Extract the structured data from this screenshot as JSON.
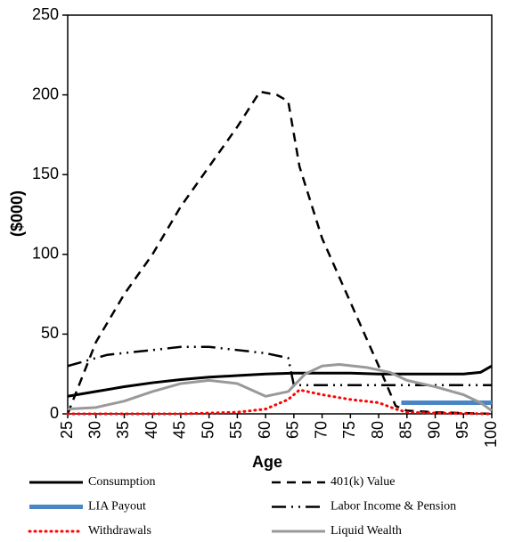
{
  "chart_data": {
    "type": "line",
    "xlabel": "Age",
    "ylabel": "($000)",
    "xlim": [
      25,
      100
    ],
    "xticks": [
      25,
      30,
      35,
      40,
      45,
      50,
      55,
      60,
      65,
      70,
      75,
      80,
      85,
      90,
      95,
      100
    ],
    "ylim": [
      0,
      250
    ],
    "yticks": [
      0,
      50,
      100,
      150,
      200,
      250
    ],
    "grid": false,
    "legend": "bottom",
    "series": [
      {
        "name": "Consumption",
        "color": "#000000",
        "dash": "solid",
        "x": [
          25,
          30,
          35,
          40,
          45,
          50,
          55,
          60,
          65,
          70,
          75,
          80,
          85,
          90,
          95,
          98,
          100
        ],
        "values": [
          11,
          14,
          17,
          19.5,
          21.5,
          23,
          24,
          25,
          25.5,
          25.5,
          25.5,
          25,
          25,
          25,
          25,
          26,
          30
        ]
      },
      {
        "name": "401(k) Value",
        "color": "#000000",
        "dash": "dash",
        "x": [
          25,
          30,
          35,
          40,
          45,
          50,
          55,
          59,
          62,
          64,
          66,
          70,
          75,
          80,
          83,
          85,
          90,
          100
        ],
        "values": [
          0,
          45,
          75,
          100,
          130,
          155,
          180,
          202,
          200,
          196,
          155,
          110,
          70,
          30,
          5,
          2,
          1,
          0
        ]
      },
      {
        "name": "LIA Payout",
        "color": "#4a86c5",
        "dash": "thick",
        "x": [
          84,
          100
        ],
        "values": [
          7,
          7
        ]
      },
      {
        "name": "Labor Income & Pension",
        "color": "#000000",
        "dash": "dashdot",
        "x": [
          25,
          28,
          32,
          40,
          45,
          50,
          55,
          60,
          64,
          65,
          70,
          75,
          80,
          85,
          90,
          95,
          100
        ],
        "values": [
          30,
          33,
          37,
          40,
          42,
          42,
          40,
          38,
          35,
          18,
          18,
          18,
          18,
          18,
          18,
          18,
          18
        ]
      },
      {
        "name": "Withdrawals",
        "color": "#ff0000",
        "dash": "dot",
        "x": [
          25,
          35,
          45,
          55,
          60,
          64,
          66,
          70,
          75,
          80,
          83,
          85,
          90,
          100
        ],
        "values": [
          0,
          0,
          0,
          1,
          3,
          9,
          15,
          12,
          9,
          7,
          3,
          1,
          0.5,
          0
        ]
      },
      {
        "name": "Liquid Wealth",
        "color": "#999999",
        "dash": "solid",
        "x": [
          25,
          30,
          35,
          40,
          45,
          50,
          55,
          60,
          64,
          67,
          70,
          73,
          78,
          82,
          85,
          90,
          95,
          98,
          100
        ],
        "values": [
          3,
          4,
          8,
          14,
          19,
          21,
          19,
          11,
          14,
          25,
          30,
          31,
          29,
          26,
          21,
          17,
          12,
          7,
          2
        ]
      }
    ]
  }
}
